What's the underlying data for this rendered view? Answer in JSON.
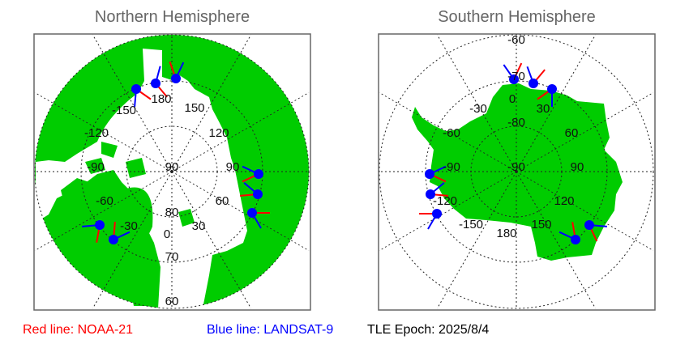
{
  "colors": {
    "land": "#00cc00",
    "ocean": "#ffffff",
    "noaa": "#ff0000",
    "landsat": "#0000ff"
  },
  "north": {
    "title": "Northern Hemisphere",
    "lon_labels": [
      "-150",
      "180",
      "150",
      "-120",
      "120",
      "-90",
      "90",
      "-60",
      "60",
      "-30",
      "30",
      "0"
    ],
    "lat_labels": [
      "90",
      "80",
      "70",
      "60"
    ]
  },
  "south": {
    "title": "Southern Hemisphere",
    "lon_labels": [
      "0",
      "-30",
      "30",
      "-60",
      "60",
      "-90",
      "90",
      "-120",
      "120",
      "-150",
      "180",
      "150"
    ],
    "lat_labels": [
      "-90",
      "-80",
      "-70",
      "-60"
    ]
  },
  "legend": {
    "red": "Red line: NOAA-21",
    "blue": "Blue line: LANDSAT-9",
    "epoch": "TLE Epoch: 2025/8/4"
  }
}
